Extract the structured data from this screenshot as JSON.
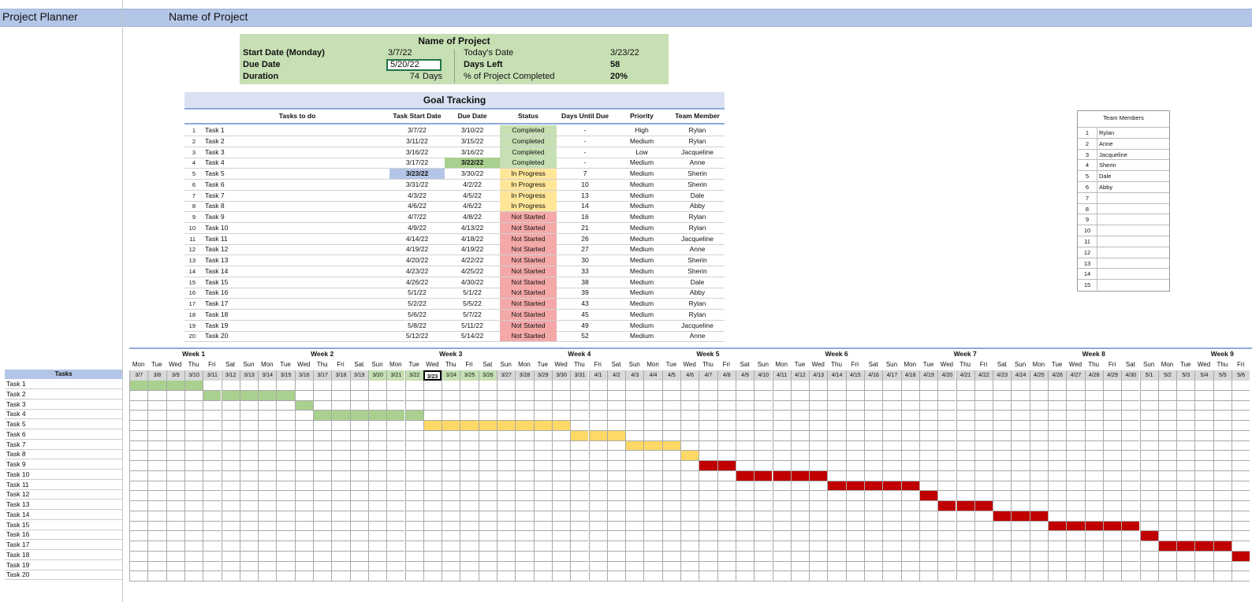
{
  "header": {
    "app_title": "Project Planner",
    "project_title": "Name of Project"
  },
  "summary": {
    "title": "Name of Project",
    "start_label": "Start Date (Monday)",
    "start_value": "3/7/22",
    "due_label": "Due Date",
    "due_value": "5/20/22",
    "duration_label": "Duration",
    "duration_value": "74",
    "duration_unit": "Days",
    "today_label": "Today's Date",
    "today_value": "3/23/22",
    "days_left_label": "Days Left",
    "days_left_value": "58",
    "pct_label": "% of Project Completed",
    "pct_value": "20%"
  },
  "goal_tracking": {
    "title": "Goal Tracking",
    "columns": [
      "Tasks to do",
      "Task Start Date",
      "Due Date",
      "Status",
      "Days Until Due",
      "Priority",
      "Team Member"
    ],
    "rows": [
      {
        "num": "1",
        "task": "Task 1",
        "start": "3/7/22",
        "due": "3/10/22",
        "status": "Completed",
        "days": "-",
        "priority": "High",
        "member": "Rylan"
      },
      {
        "num": "2",
        "task": "Task 2",
        "start": "3/11/22",
        "due": "3/15/22",
        "status": "Completed",
        "days": "-",
        "priority": "Medium",
        "member": "Rylan"
      },
      {
        "num": "3",
        "task": "Task 3",
        "start": "3/16/22",
        "due": "3/16/22",
        "status": "Completed",
        "days": "-",
        "priority": "Low",
        "member": "Jacqueline"
      },
      {
        "num": "4",
        "task": "Task 4",
        "start": "3/17/22",
        "due": "3/22/22",
        "status": "Completed",
        "days": "-",
        "priority": "Medium",
        "member": "Anne"
      },
      {
        "num": "5",
        "task": "Task 5",
        "start": "3/23/22",
        "due": "3/30/22",
        "status": "In Progress",
        "days": "7",
        "priority": "Medium",
        "member": "Sherin"
      },
      {
        "num": "6",
        "task": "Task 6",
        "start": "3/31/22",
        "due": "4/2/22",
        "status": "In Progress",
        "days": "10",
        "priority": "Medium",
        "member": "Sherin"
      },
      {
        "num": "7",
        "task": "Task 7",
        "start": "4/3/22",
        "due": "4/5/22",
        "status": "In Progress",
        "days": "13",
        "priority": "Medium",
        "member": "Dale"
      },
      {
        "num": "8",
        "task": "Task 8",
        "start": "4/6/22",
        "due": "4/6/22",
        "status": "In Progress",
        "days": "14",
        "priority": "Medium",
        "member": "Abby"
      },
      {
        "num": "9",
        "task": "Task 9",
        "start": "4/7/22",
        "due": "4/8/22",
        "status": "Not Started",
        "days": "16",
        "priority": "Medium",
        "member": "Rylan"
      },
      {
        "num": "10",
        "task": "Task 10",
        "start": "4/9/22",
        "due": "4/13/22",
        "status": "Not Started",
        "days": "21",
        "priority": "Medium",
        "member": "Rylan"
      },
      {
        "num": "11",
        "task": "Task 11",
        "start": "4/14/22",
        "due": "4/18/22",
        "status": "Not Started",
        "days": "26",
        "priority": "Medium",
        "member": "Jacqueline"
      },
      {
        "num": "12",
        "task": "Task 12",
        "start": "4/19/22",
        "due": "4/19/22",
        "status": "Not Started",
        "days": "27",
        "priority": "Medium",
        "member": "Anne"
      },
      {
        "num": "13",
        "task": "Task 13",
        "start": "4/20/22",
        "due": "4/22/22",
        "status": "Not Started",
        "days": "30",
        "priority": "Medium",
        "member": "Sherin"
      },
      {
        "num": "14",
        "task": "Task 14",
        "start": "4/23/22",
        "due": "4/25/22",
        "status": "Not Started",
        "days": "33",
        "priority": "Medium",
        "member": "Sherin"
      },
      {
        "num": "15",
        "task": "Task 15",
        "start": "4/26/22",
        "due": "4/30/22",
        "status": "Not Started",
        "days": "38",
        "priority": "Medium",
        "member": "Dale"
      },
      {
        "num": "16",
        "task": "Task 16",
        "start": "5/1/22",
        "due": "5/1/22",
        "status": "Not Started",
        "days": "39",
        "priority": "Medium",
        "member": "Abby"
      },
      {
        "num": "17",
        "task": "Task 17",
        "start": "5/2/22",
        "due": "5/5/22",
        "status": "Not Started",
        "days": "43",
        "priority": "Medium",
        "member": "Rylan"
      },
      {
        "num": "18",
        "task": "Task 18",
        "start": "5/6/22",
        "due": "5/7/22",
        "status": "Not Started",
        "days": "45",
        "priority": "Medium",
        "member": "Rylan"
      },
      {
        "num": "19",
        "task": "Task 19",
        "start": "5/8/22",
        "due": "5/11/22",
        "status": "Not Started",
        "days": "49",
        "priority": "Medium",
        "member": "Jacqueline"
      },
      {
        "num": "20",
        "task": "Task 20",
        "start": "5/12/22",
        "due": "5/14/22",
        "status": "Not Started",
        "days": "52",
        "priority": "Medium",
        "member": "Anne"
      }
    ]
  },
  "team": {
    "title": "Team Members",
    "rows": [
      {
        "num": "1",
        "name": "Rylan"
      },
      {
        "num": "2",
        "name": "Anne"
      },
      {
        "num": "3",
        "name": "Jacqueline"
      },
      {
        "num": "4",
        "name": "Sherin"
      },
      {
        "num": "5",
        "name": "Dale"
      },
      {
        "num": "6",
        "name": "Abby"
      },
      {
        "num": "7",
        "name": ""
      },
      {
        "num": "8",
        "name": ""
      },
      {
        "num": "9",
        "name": ""
      },
      {
        "num": "10",
        "name": ""
      },
      {
        "num": "11",
        "name": ""
      },
      {
        "num": "12",
        "name": ""
      },
      {
        "num": "13",
        "name": ""
      },
      {
        "num": "14",
        "name": ""
      },
      {
        "num": "15",
        "name": ""
      }
    ]
  },
  "gantt": {
    "tasks_header": "Tasks",
    "weeks": [
      "Week 1",
      "Week 2",
      "Week 3",
      "Week 4",
      "Week 5",
      "Week 6",
      "Week 7",
      "Week 8",
      "Week 9"
    ],
    "day_names": [
      "Mon",
      "Tue",
      "Wed",
      "Thu",
      "Fri",
      "Sat",
      "Sun",
      "Mon",
      "Tue",
      "Wed",
      "Thu",
      "Fri",
      "Sat",
      "Sun",
      "Mon",
      "Tue",
      "Wed",
      "Thu",
      "Fri",
      "Sat",
      "Sun",
      "Mon",
      "Tue",
      "Wed",
      "Thu",
      "Fri",
      "Sat",
      "Sun",
      "Mon",
      "Tue",
      "Wed",
      "Thu",
      "Fri",
      "Sat",
      "Sun",
      "Mon",
      "Tue",
      "Wed",
      "Thu",
      "Fri",
      "Sat",
      "Sun",
      "Mon",
      "Tue",
      "Wed",
      "Thu",
      "Fri",
      "Sat",
      "Sun",
      "Mon",
      "Tue",
      "Wed",
      "Thu",
      "Fri",
      "Sat",
      "Sun",
      "Mon",
      "Tue",
      "Wed",
      "Thu",
      "Fri"
    ],
    "dates": [
      "3/7",
      "3/8",
      "3/9",
      "3/10",
      "3/11",
      "3/12",
      "3/13",
      "3/14",
      "3/15",
      "3/16",
      "3/17",
      "3/18",
      "3/19",
      "3/20",
      "3/21",
      "3/22",
      "3/23",
      "3/24",
      "3/25",
      "3/26",
      "3/27",
      "3/28",
      "3/29",
      "3/30",
      "3/31",
      "4/1",
      "4/2",
      "4/3",
      "4/4",
      "4/5",
      "4/6",
      "4/7",
      "4/8",
      "4/9",
      "4/10",
      "4/11",
      "4/12",
      "4/13",
      "4/14",
      "4/15",
      "4/16",
      "4/17",
      "4/18",
      "4/19",
      "4/20",
      "4/21",
      "4/22",
      "4/23",
      "4/24",
      "4/25",
      "4/26",
      "4/27",
      "4/28",
      "4/29",
      "4/30",
      "5/1",
      "5/2",
      "5/3",
      "5/4",
      "5/5",
      "5/6"
    ],
    "colors": {
      "completed": "#a9d08e",
      "in_progress": "#ffd966",
      "not_started": "#c00000"
    }
  }
}
